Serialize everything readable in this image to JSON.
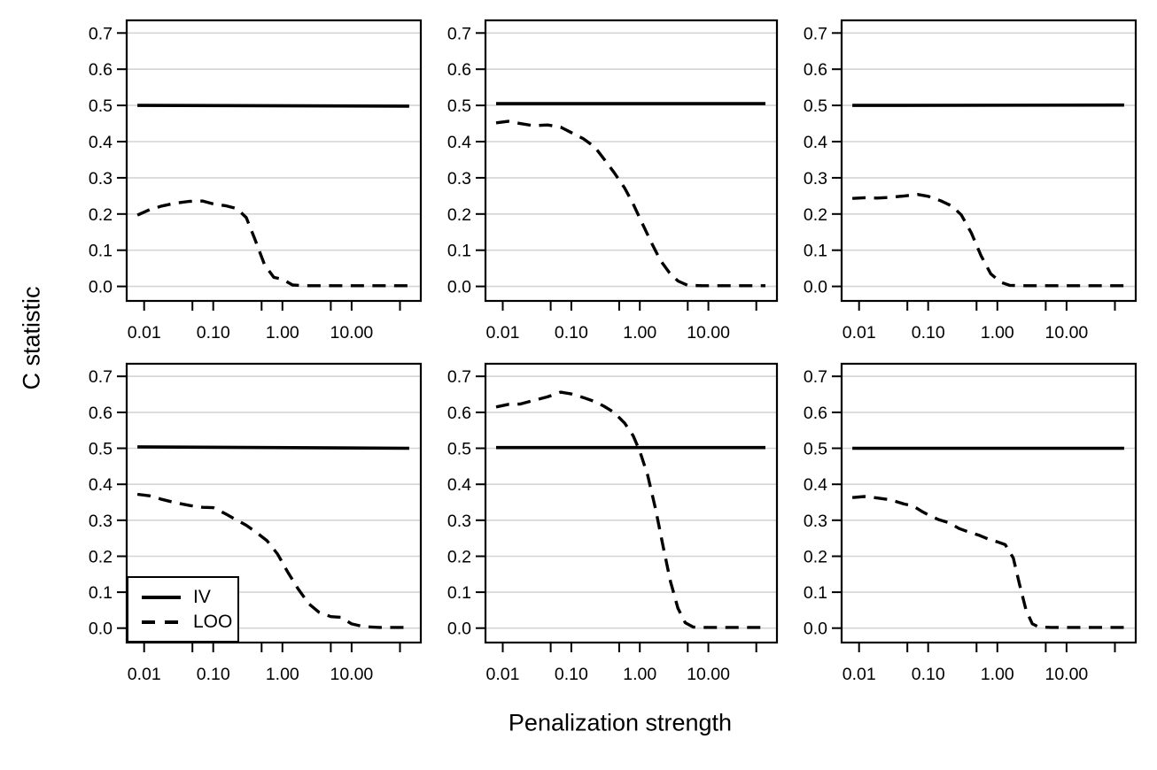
{
  "figure": {
    "ylabel": "C statistic",
    "xlabel": "Penalization strength",
    "background": "#ffffff",
    "line_color": "#000000",
    "grid_color": "#d4d4d4"
  },
  "legend": {
    "items": [
      {
        "label": "IV",
        "line": "solid"
      },
      {
        "label": "LOO",
        "line": "dashed"
      }
    ],
    "position": "bottom-left panel, lower-left corner"
  },
  "axes": {
    "x_scale": "log",
    "xlim": [
      0.0056,
      100
    ],
    "ylim": [
      -0.04,
      0.735
    ],
    "grid": "horizontal",
    "x_major_ticks": [
      {
        "value": 0.01,
        "label": "0.01"
      },
      {
        "value": 0.1,
        "label": "0.10"
      },
      {
        "value": 1,
        "label": "1.00"
      },
      {
        "value": 10,
        "label": "10.00"
      }
    ],
    "x_minor_ticks": [
      0.05,
      0.5,
      5,
      50
    ],
    "y_ticks": [
      {
        "value": 0.0,
        "label": "0.0"
      },
      {
        "value": 0.1,
        "label": "0.1"
      },
      {
        "value": 0.2,
        "label": "0.2"
      },
      {
        "value": 0.3,
        "label": "0.3"
      },
      {
        "value": 0.4,
        "label": "0.4"
      },
      {
        "value": 0.5,
        "label": "0.5"
      },
      {
        "value": 0.6,
        "label": "0.6"
      },
      {
        "value": 0.7,
        "label": "0.7"
      }
    ]
  },
  "chart_data": [
    {
      "type": "line",
      "panel": "top-left",
      "series": [
        {
          "name": "IV",
          "style": "solid",
          "x": [
            0.008,
            68
          ],
          "y": [
            0.5,
            0.498
          ]
        },
        {
          "name": "LOO",
          "style": "dashed",
          "x": [
            0.008,
            0.012,
            0.018,
            0.028,
            0.045,
            0.07,
            0.1,
            0.15,
            0.22,
            0.3,
            0.4,
            0.55,
            0.75,
            1.0,
            1.4,
            2,
            3,
            5,
            8,
            13,
            22,
            40,
            68
          ],
          "y": [
            0.197,
            0.212,
            0.222,
            0.23,
            0.235,
            0.236,
            0.228,
            0.223,
            0.215,
            0.19,
            0.13,
            0.06,
            0.025,
            0.02,
            0.004,
            0.002,
            0.002,
            0.002,
            0.002,
            0.002,
            0.002,
            0.002,
            0.002
          ]
        }
      ]
    },
    {
      "type": "line",
      "panel": "top-middle",
      "series": [
        {
          "name": "IV",
          "style": "solid",
          "x": [
            0.008,
            68
          ],
          "y": [
            0.505,
            0.505
          ]
        },
        {
          "name": "LOO",
          "style": "dashed",
          "x": [
            0.008,
            0.012,
            0.018,
            0.028,
            0.045,
            0.07,
            0.1,
            0.15,
            0.22,
            0.3,
            0.42,
            0.6,
            0.8,
            1.1,
            1.5,
            2.0,
            2.7,
            3.6,
            5,
            8,
            13,
            22,
            40,
            68
          ],
          "y": [
            0.452,
            0.456,
            0.45,
            0.444,
            0.446,
            0.44,
            0.425,
            0.408,
            0.385,
            0.352,
            0.315,
            0.272,
            0.228,
            0.172,
            0.118,
            0.072,
            0.038,
            0.015,
            0.003,
            0.002,
            0.002,
            0.002,
            0.002,
            0.002
          ]
        }
      ]
    },
    {
      "type": "line",
      "panel": "top-right",
      "series": [
        {
          "name": "IV",
          "style": "solid",
          "x": [
            0.008,
            68
          ],
          "y": [
            0.5,
            0.501
          ]
        },
        {
          "name": "LOO",
          "style": "dashed",
          "x": [
            0.008,
            0.012,
            0.018,
            0.028,
            0.045,
            0.07,
            0.1,
            0.15,
            0.22,
            0.3,
            0.42,
            0.58,
            0.8,
            1.1,
            1.5,
            2.2,
            3.5,
            6,
            10,
            18,
            35,
            68
          ],
          "y": [
            0.243,
            0.245,
            0.244,
            0.246,
            0.25,
            0.254,
            0.249,
            0.237,
            0.222,
            0.198,
            0.148,
            0.085,
            0.035,
            0.012,
            0.003,
            0.002,
            0.002,
            0.002,
            0.002,
            0.002,
            0.002,
            0.002
          ]
        }
      ]
    },
    {
      "type": "line",
      "panel": "bottom-left",
      "series": [
        {
          "name": "IV",
          "style": "solid",
          "x": [
            0.008,
            68
          ],
          "y": [
            0.504,
            0.5
          ]
        },
        {
          "name": "LOO",
          "style": "dashed",
          "x": [
            0.008,
            0.012,
            0.018,
            0.028,
            0.045,
            0.07,
            0.1,
            0.15,
            0.22,
            0.3,
            0.42,
            0.6,
            0.85,
            1.2,
            1.7,
            2.4,
            3.4,
            5,
            7,
            10,
            15,
            25,
            45,
            68
          ],
          "y": [
            0.372,
            0.368,
            0.358,
            0.349,
            0.341,
            0.336,
            0.335,
            0.318,
            0.3,
            0.286,
            0.266,
            0.243,
            0.206,
            0.155,
            0.108,
            0.068,
            0.044,
            0.032,
            0.03,
            0.012,
            0.004,
            0.002,
            0.002,
            0.002
          ]
        }
      ]
    },
    {
      "type": "line",
      "panel": "bottom-middle",
      "series": [
        {
          "name": "IV",
          "style": "solid",
          "x": [
            0.008,
            68
          ],
          "y": [
            0.502,
            0.502
          ]
        },
        {
          "name": "LOO",
          "style": "dashed",
          "x": [
            0.008,
            0.012,
            0.018,
            0.028,
            0.045,
            0.07,
            0.1,
            0.15,
            0.22,
            0.3,
            0.42,
            0.6,
            0.8,
            1.0,
            1.3,
            1.7,
            2.2,
            2.8,
            3.6,
            4.6,
            6,
            8,
            13,
            22,
            40,
            68
          ],
          "y": [
            0.615,
            0.622,
            0.623,
            0.633,
            0.643,
            0.656,
            0.651,
            0.641,
            0.63,
            0.617,
            0.6,
            0.57,
            0.535,
            0.492,
            0.425,
            0.33,
            0.225,
            0.13,
            0.055,
            0.015,
            0.003,
            0.002,
            0.002,
            0.002,
            0.002,
            0.002
          ]
        }
      ]
    },
    {
      "type": "line",
      "panel": "bottom-right",
      "series": [
        {
          "name": "IV",
          "style": "solid",
          "x": [
            0.008,
            68
          ],
          "y": [
            0.5,
            0.5
          ]
        },
        {
          "name": "LOO",
          "style": "dashed",
          "x": [
            0.008,
            0.012,
            0.018,
            0.028,
            0.045,
            0.06,
            0.08,
            0.1,
            0.14,
            0.2,
            0.28,
            0.4,
            0.55,
            0.75,
            1.0,
            1.3,
            1.7,
            2.1,
            2.6,
            3.2,
            4,
            6,
            10,
            18,
            35,
            68
          ],
          "y": [
            0.363,
            0.366,
            0.362,
            0.357,
            0.345,
            0.34,
            0.325,
            0.315,
            0.302,
            0.293,
            0.277,
            0.266,
            0.258,
            0.247,
            0.24,
            0.232,
            0.195,
            0.12,
            0.05,
            0.012,
            0.003,
            0.002,
            0.002,
            0.002,
            0.002,
            0.002
          ]
        }
      ]
    }
  ]
}
